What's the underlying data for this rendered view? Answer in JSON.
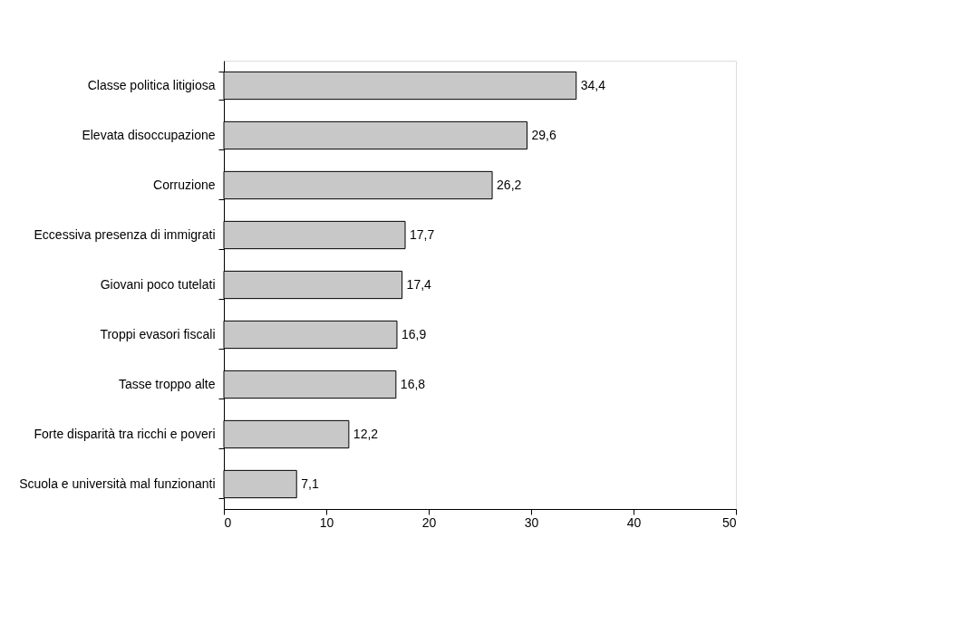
{
  "chart_data": {
    "type": "bar",
    "orientation": "horizontal",
    "categories": [
      "Classe politica litigiosa",
      "Elevata disoccupazione",
      "Corruzione",
      "Eccessiva presenza di immigrati",
      "Giovani poco tutelati",
      "Troppi evasori fiscali",
      "Tasse troppo alte",
      "Forte disparità tra ricchi e poveri",
      "Scuola e università mal funzionanti"
    ],
    "values": [
      34.4,
      29.6,
      26.2,
      17.7,
      17.4,
      16.9,
      16.8,
      12.2,
      7.1
    ],
    "value_labels": [
      "34,4",
      "29,6",
      "26,2",
      "17,7",
      "17,4",
      "16,9",
      "16,8",
      "12,2",
      "7,1"
    ],
    "color": "#c8c8c8",
    "xlim": [
      0,
      50
    ],
    "xticks": [
      0,
      10,
      20,
      30,
      40,
      50
    ]
  }
}
